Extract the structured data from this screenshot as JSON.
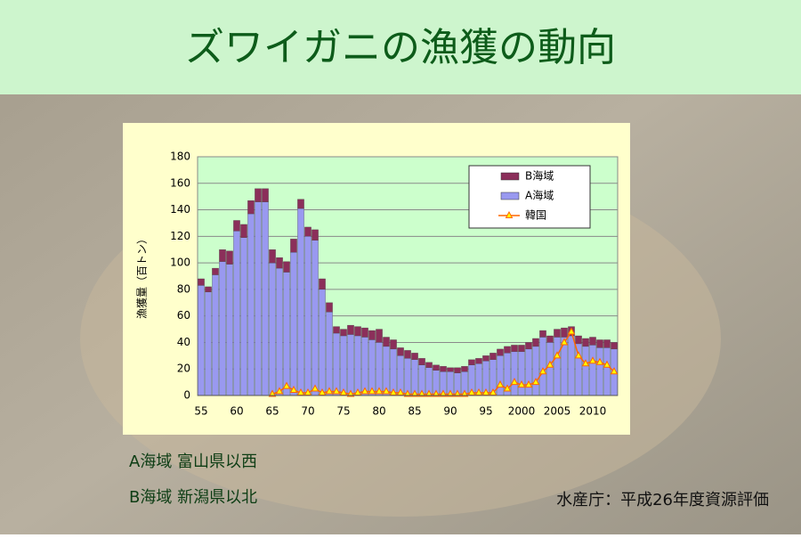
{
  "title": "ズワイガニの漁獲の動向",
  "notes": [
    "A海域 富山県以西",
    "B海域 新潟県以北"
  ],
  "source": "水産庁：平成26年度資源評価",
  "chart_data": {
    "type": "bar",
    "y_label": "漁獲量（百トン）",
    "categories": [
      "55",
      null,
      null,
      null,
      null,
      "60",
      null,
      null,
      null,
      null,
      "65",
      null,
      null,
      null,
      null,
      "70",
      null,
      null,
      null,
      null,
      "75",
      null,
      null,
      null,
      null,
      "80",
      null,
      null,
      null,
      null,
      "85",
      null,
      null,
      null,
      null,
      "90",
      null,
      null,
      null,
      null,
      "95",
      null,
      null,
      null,
      null,
      "2000",
      null,
      null,
      null,
      null,
      "2005",
      null,
      null,
      null,
      null,
      "2010",
      null,
      null,
      null
    ],
    "series": [
      {
        "name": "B海域",
        "color": "#8b2f5a",
        "values": [
          5,
          4,
          5,
          9,
          10,
          8,
          10,
          10,
          10,
          10,
          10,
          8,
          8,
          10,
          7,
          7,
          8,
          8,
          7,
          5,
          5,
          7,
          7,
          7,
          7,
          10,
          7,
          7,
          6,
          6,
          5,
          5,
          4,
          4,
          4,
          3,
          4,
          4,
          4,
          4,
          4,
          5,
          5,
          5,
          5,
          5,
          5,
          6,
          5,
          5,
          6,
          7,
          7,
          6,
          6,
          6,
          6,
          6,
          5
        ]
      },
      {
        "name": "A海域",
        "color": "#9999f0",
        "values": [
          83,
          78,
          91,
          101,
          99,
          124,
          119,
          137,
          146,
          146,
          100,
          96,
          93,
          108,
          141,
          120,
          117,
          80,
          63,
          47,
          45,
          46,
          45,
          44,
          42,
          40,
          37,
          35,
          30,
          28,
          27,
          23,
          21,
          19,
          18,
          18,
          17,
          18,
          23,
          24,
          26,
          27,
          30,
          32,
          33,
          33,
          35,
          37,
          44,
          40,
          44,
          44,
          45,
          39,
          37,
          38,
          36,
          36,
          35
        ]
      },
      {
        "name": "韓国",
        "type": "line",
        "color": "#ff6600",
        "values": [
          null,
          null,
          null,
          null,
          null,
          null,
          null,
          null,
          null,
          null,
          1,
          3,
          7,
          4,
          2,
          2,
          5,
          2,
          3,
          3,
          2,
          1,
          2,
          3,
          3,
          3,
          3,
          2,
          2,
          1,
          1,
          1,
          1,
          1,
          1,
          1,
          1,
          1,
          2,
          2,
          2,
          2,
          8,
          5,
          10,
          8,
          8,
          10,
          18,
          23,
          30,
          40,
          48,
          30,
          24,
          26,
          25,
          23,
          18
        ]
      }
    ],
    "ylim": [
      0,
      180
    ],
    "yticks": [
      0,
      20,
      40,
      60,
      80,
      100,
      120,
      140,
      160,
      180
    ],
    "grid": true
  }
}
